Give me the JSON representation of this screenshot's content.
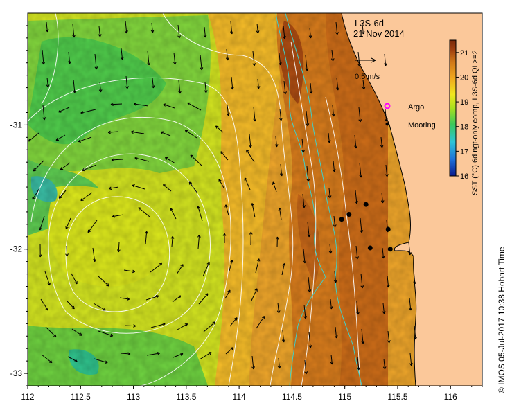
{
  "map": {
    "product": "L3S-6d",
    "date": "21 Nov 2014",
    "velocity_scale_label": "0.5 m/s",
    "legend": {
      "argo_label": "Argo",
      "mooring_label": "Mooring",
      "argo_color": "#ff00ff",
      "mooring_color": "#000000"
    },
    "colorbar": {
      "label": "SST (°C) 6d ngt-only comp, L3S-6d QL>=2",
      "ticks": [
        "21",
        "20",
        "19",
        "18",
        "17",
        "16"
      ],
      "range": [
        16,
        21.5
      ],
      "colors": [
        "#0a1a8c",
        "#1e6fd9",
        "#2ec4d6",
        "#3cc85a",
        "#a8e01e",
        "#f0e61e",
        "#f0a81e",
        "#d07818",
        "#a04010",
        "#7a2a0a"
      ]
    },
    "x_axis": {
      "ticks": [
        "112",
        "112.5",
        "113",
        "113.5",
        "114",
        "114.5",
        "115",
        "115.5",
        "116"
      ],
      "range": [
        112,
        116.3
      ]
    },
    "y_axis": {
      "ticks": [
        "-31",
        "-32",
        "-33"
      ],
      "range": [
        -33.1,
        -30.1
      ]
    },
    "credit": "© IMOS 05-Jul-2017 10:38 Hobart Time",
    "moorings": [
      {
        "lon": 114.97,
        "lat": -31.76
      },
      {
        "lon": 115.04,
        "lat": -31.72
      },
      {
        "lon": 115.2,
        "lat": -31.64
      },
      {
        "lon": 115.24,
        "lat": -31.99
      },
      {
        "lon": 115.41,
        "lat": -31.84
      },
      {
        "lon": 115.43,
        "lat": -32.0
      }
    ],
    "colors": {
      "land": "#fbc89a",
      "contour": "#ffffff",
      "isobath": "#40d0c8"
    }
  }
}
